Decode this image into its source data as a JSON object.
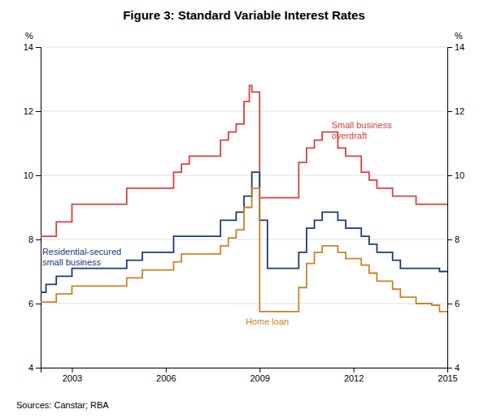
{
  "chart_data": {
    "type": "step",
    "title": "Figure 3: Standard Variable Interest Rates",
    "y_label": "%",
    "y2_label": "%",
    "source": "Sources:   Canstar; RBA",
    "xlim": [
      2002.0,
      2015.0
    ],
    "xticks": [
      2003,
      2006,
      2009,
      2012,
      2015
    ],
    "ylim": [
      4,
      14
    ],
    "yticks": [
      4,
      6,
      8,
      10,
      12,
      14
    ],
    "y2lim": [
      4,
      14
    ],
    "y2ticks": [
      4,
      6,
      8,
      10,
      12,
      14
    ],
    "grid": true,
    "series": [
      {
        "color": "#d94040",
        "x": [
          2002.0,
          2002.17,
          2002.5,
          2002.75,
          2003.0,
          2003.25,
          2003.5,
          2003.75,
          2004.0,
          2004.25,
          2004.5,
          2004.75,
          2005.0,
          2005.25,
          2005.5,
          2005.75,
          2006.0,
          2006.25,
          2006.5,
          2006.75,
          2007.0,
          2007.25,
          2007.5,
          2007.75,
          2008.0,
          2008.25,
          2008.5,
          2008.67,
          2008.75,
          2009.0,
          2009.17,
          2009.5,
          2009.75,
          2010.0,
          2010.25,
          2010.5,
          2010.75,
          2011.0,
          2011.25,
          2011.5,
          2011.75,
          2012.0,
          2012.25,
          2012.5,
          2012.75,
          2013.0,
          2013.25,
          2013.5,
          2013.75,
          2014.0,
          2014.25,
          2014.5,
          2014.75,
          2015.0
        ],
        "values": [
          8.1,
          8.1,
          8.55,
          8.55,
          9.1,
          9.1,
          9.1,
          9.1,
          9.1,
          9.1,
          9.1,
          9.6,
          9.6,
          9.6,
          9.6,
          9.6,
          9.6,
          10.1,
          10.35,
          10.6,
          10.6,
          10.6,
          10.6,
          11.1,
          11.35,
          11.6,
          12.3,
          12.8,
          12.6,
          9.3,
          9.3,
          9.3,
          9.3,
          9.3,
          10.4,
          10.85,
          11.1,
          11.35,
          11.35,
          10.85,
          10.6,
          10.6,
          10.1,
          9.85,
          9.6,
          9.6,
          9.35,
          9.35,
          9.35,
          9.1,
          9.1,
          9.1,
          9.1,
          9.1
        ]
      },
      {
        "color": "#1a3a7c",
        "x": [
          2002.0,
          2002.17,
          2002.5,
          2002.75,
          2003.0,
          2003.25,
          2003.5,
          2003.75,
          2004.0,
          2004.25,
          2004.5,
          2004.75,
          2005.0,
          2005.25,
          2005.5,
          2005.75,
          2006.0,
          2006.25,
          2006.5,
          2006.75,
          2007.0,
          2007.25,
          2007.5,
          2007.75,
          2008.0,
          2008.25,
          2008.5,
          2008.75,
          2009.0,
          2009.25,
          2009.5,
          2009.75,
          2010.0,
          2010.25,
          2010.5,
          2010.75,
          2011.0,
          2011.25,
          2011.5,
          2011.75,
          2012.0,
          2012.25,
          2012.5,
          2012.75,
          2013.0,
          2013.25,
          2013.5,
          2013.75,
          2014.0,
          2014.25,
          2014.5,
          2014.75,
          2015.0
        ],
        "values": [
          6.35,
          6.6,
          6.85,
          6.85,
          7.1,
          7.1,
          7.1,
          7.1,
          7.1,
          7.1,
          7.1,
          7.35,
          7.35,
          7.6,
          7.6,
          7.6,
          7.6,
          8.1,
          8.1,
          8.1,
          8.1,
          8.1,
          8.1,
          8.6,
          8.6,
          8.85,
          9.35,
          10.1,
          8.6,
          7.1,
          7.1,
          7.1,
          7.1,
          7.6,
          8.35,
          8.6,
          8.85,
          8.85,
          8.6,
          8.35,
          8.35,
          8.1,
          7.85,
          7.6,
          7.6,
          7.35,
          7.1,
          7.1,
          7.1,
          7.1,
          7.1,
          7.0,
          7.0
        ]
      },
      {
        "color": "#c8822a",
        "x": [
          2002.0,
          2002.17,
          2002.5,
          2002.75,
          2003.0,
          2003.25,
          2003.5,
          2003.75,
          2004.0,
          2004.25,
          2004.5,
          2004.75,
          2005.0,
          2005.25,
          2005.5,
          2005.75,
          2006.0,
          2006.25,
          2006.5,
          2006.75,
          2007.0,
          2007.25,
          2007.5,
          2007.75,
          2008.0,
          2008.25,
          2008.5,
          2008.75,
          2009.0,
          2009.17,
          2009.25,
          2009.5,
          2009.75,
          2010.0,
          2010.25,
          2010.5,
          2010.75,
          2011.0,
          2011.25,
          2011.5,
          2011.75,
          2012.0,
          2012.25,
          2012.5,
          2012.75,
          2013.0,
          2013.25,
          2013.5,
          2013.75,
          2014.0,
          2014.25,
          2014.5,
          2014.75,
          2015.0
        ],
        "values": [
          6.05,
          6.05,
          6.3,
          6.3,
          6.55,
          6.55,
          6.55,
          6.55,
          6.55,
          6.55,
          6.55,
          6.8,
          6.8,
          7.05,
          7.05,
          7.05,
          7.05,
          7.3,
          7.55,
          7.55,
          7.55,
          7.55,
          7.55,
          7.8,
          8.05,
          8.3,
          9.0,
          9.6,
          5.75,
          5.75,
          5.75,
          5.75,
          5.75,
          5.75,
          6.5,
          7.25,
          7.6,
          7.8,
          7.8,
          7.6,
          7.4,
          7.4,
          7.2,
          6.95,
          6.7,
          6.7,
          6.45,
          6.2,
          6.2,
          6.0,
          6.0,
          5.95,
          5.75,
          5.75
        ]
      }
    ],
    "annotations": [
      {
        "text": "Small business\noverdraft",
        "x": 2011.3,
        "y": 11.4,
        "color": "#d94040"
      },
      {
        "text": "Residential-secured\nsmall business",
        "x": 2002.05,
        "y": 7.45,
        "color": "#1a3a7c"
      },
      {
        "text": "Home loan",
        "x": 2008.55,
        "y": 5.45,
        "color": "#c8822a"
      }
    ]
  }
}
